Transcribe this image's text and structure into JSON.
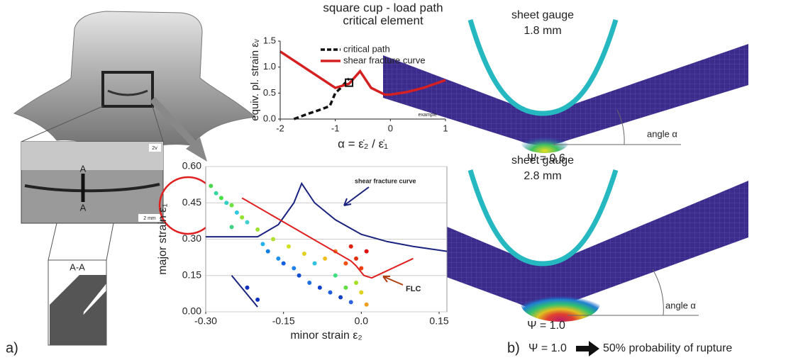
{
  "panel_a_label": "a)",
  "photo_labels": {
    "section_top": "A",
    "section_bottom": "A",
    "section_title": "A-A",
    "corner": "2v",
    "scale": "2 mm"
  },
  "panel_b": {
    "label": "b)",
    "caption_psi": "Ψ = 1.0",
    "caption_text": "50% probability of rupture",
    "sims": [
      {
        "gauge_line1": "sheet gauge",
        "gauge_line2": "1.8 mm",
        "angle": "angle α",
        "psi": "Ψ = 0.6"
      },
      {
        "gauge_line1": "sheet gauge",
        "gauge_line2": "2.8 mm",
        "angle": "angle α",
        "psi": "Ψ = 1.0"
      }
    ]
  },
  "chart_data": [
    {
      "type": "line",
      "title": [
        "square cup - load path",
        "critical element"
      ],
      "x_label": "α = ε̇₂ / ε̇₁",
      "y_label": "equiv. pl. strain εᵥ",
      "annotation": "example",
      "xlim": [
        -2,
        1
      ],
      "ylim": [
        0,
        1.5
      ],
      "xticks": [
        -2,
        -1,
        0,
        1
      ],
      "yticks": [
        {
          "value": 0,
          "label": "0.0"
        },
        {
          "value": 0.5,
          "label": "0.5"
        },
        {
          "value": 1,
          "label": "1.0"
        },
        {
          "value": 1.5,
          "label": "1.5"
        }
      ],
      "marker": {
        "x": -0.75,
        "y": 0.7
      },
      "series": [
        {
          "name": "critical path",
          "color": "#111111",
          "dashed": true,
          "x": [
            -1.75,
            -1.5,
            -1.3,
            -1.1,
            -1.0,
            -0.9,
            -0.8,
            -0.75
          ],
          "values": [
            0,
            0.1,
            0.17,
            0.25,
            0.5,
            0.6,
            0.72,
            0.78
          ]
        },
        {
          "name": "shear fracture curve",
          "color": "#d42020",
          "dashed": false,
          "x": [
            -2,
            -1.5,
            -1.0,
            -0.75,
            -0.55,
            -0.35,
            -0.1,
            0,
            0.3,
            0.6,
            1
          ],
          "values": [
            1.3,
            0.95,
            0.6,
            0.68,
            0.92,
            0.6,
            0.47,
            0.47,
            0.52,
            0.6,
            0.75
          ]
        }
      ]
    },
    {
      "type": "scatter",
      "x_label": "minor strain ε₂",
      "y_label": "major strain ε₁",
      "annotations": [
        "shear fracture curve",
        "FLC"
      ],
      "xlim": [
        -0.3,
        0.165
      ],
      "ylim": [
        0,
        0.6
      ],
      "grid": true,
      "xticks": [
        {
          "value": -0.3,
          "label": "-0.30"
        },
        {
          "value": -0.15,
          "label": "-0.15"
        },
        {
          "value": 0,
          "label": "0.0"
        },
        {
          "value": 0.15,
          "label": "0.15"
        }
      ],
      "yticks": [
        {
          "value": 0,
          "label": "0.00"
        },
        {
          "value": 0.15,
          "label": "0.15"
        },
        {
          "value": 0.3,
          "label": "0.30"
        },
        {
          "value": 0.45,
          "label": "0.45"
        },
        {
          "value": 0.6,
          "label": "0.60"
        }
      ],
      "points": {
        "x": [
          -0.29,
          -0.28,
          -0.27,
          -0.26,
          -0.25,
          -0.24,
          -0.23,
          -0.22,
          -0.2,
          -0.19,
          -0.18,
          -0.17,
          -0.16,
          -0.15,
          -0.14,
          -0.13,
          -0.12,
          -0.11,
          -0.1,
          -0.09,
          -0.08,
          -0.07,
          -0.06,
          -0.05,
          -0.05,
          -0.04,
          -0.03,
          -0.03,
          -0.02,
          -0.02,
          -0.01,
          -0.01,
          0.0,
          0.0,
          0.01,
          0.01,
          -0.22,
          -0.2,
          -0.25
        ],
        "values": [
          0.52,
          0.49,
          0.47,
          0.45,
          0.44,
          0.41,
          0.39,
          0.37,
          0.34,
          0.28,
          0.25,
          0.3,
          0.22,
          0.2,
          0.27,
          0.18,
          0.15,
          0.24,
          0.12,
          0.2,
          0.1,
          0.22,
          0.08,
          0.25,
          0.15,
          0.06,
          0.2,
          0.1,
          0.27,
          0.04,
          0.22,
          0.12,
          0.18,
          0.08,
          0.25,
          0.03,
          0.1,
          0.05,
          0.35
        ],
        "colors": [
          "#4cd64c",
          "#3ad6a0",
          "#46e046",
          "#30d0c0",
          "#6ee040",
          "#30c8e0",
          "#90e030",
          "#40d0d0",
          "#a0e030",
          "#20b0f0",
          "#1080e0",
          "#b0e030",
          "#2090f0",
          "#1060e0",
          "#d0e020",
          "#2080f0",
          "#1050d0",
          "#e0d020",
          "#2070e0",
          "#30c0e0",
          "#1040d0",
          "#f0c020",
          "#2060e0",
          "#f08020",
          "#40e080",
          "#1040c0",
          "#f05010",
          "#60e040",
          "#e02010",
          "#3060e0",
          "#e03010",
          "#a0e020",
          "#f04010",
          "#e0d020",
          "#e01010",
          "#f0a020",
          "#1030c0",
          "#1030c0",
          "#40d080"
        ]
      },
      "series": [
        {
          "color": "#1a237e",
          "x": [
            -0.3,
            -0.2,
            -0.16,
            -0.13,
            -0.115,
            -0.09,
            -0.05,
            0,
            0.05,
            0.1,
            0.165,
            -0.3,
            -0.25,
            -0.2
          ],
          "values": [
            0.31,
            0.31,
            0.36,
            0.45,
            0.53,
            0.45,
            0.38,
            0.32,
            0.29,
            0.27,
            0.25,
            null,
            0.15,
            0.02
          ]
        },
        {
          "color": "#e02020",
          "x": [
            -0.23,
            -0.02,
            -0.01,
            0.005,
            0.02,
            0.05,
            0.1
          ],
          "values": [
            0.47,
            0.21,
            0.19,
            0.15,
            0.14,
            0.17,
            0.22
          ]
        }
      ]
    }
  ]
}
